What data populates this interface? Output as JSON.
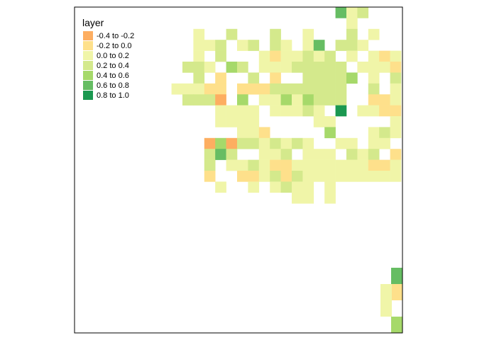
{
  "legend": {
    "title": "layer",
    "classes": [
      {
        "label": "-0.4 to -0.2",
        "color": "#fdae61"
      },
      {
        "label": "-0.2 to 0.0",
        "color": "#fee08b"
      },
      {
        "label": "0.0 to 0.2",
        "color": "#f0f5a8"
      },
      {
        "label": "0.2 to 0.4",
        "color": "#d4e98c"
      },
      {
        "label": "0.4 to 0.6",
        "color": "#a6d96a"
      },
      {
        "label": "0.6 to 0.8",
        "color": "#66bd63"
      },
      {
        "label": "0.8 to 1.0",
        "color": "#1a9850"
      }
    ]
  },
  "grid": {
    "origin_col": 7,
    "origin_row": 1,
    "rows": [
      "...................5c2........................",
      "....................c...........................",
      "......c..2...2..c...2.c..........................",
      "......cc2.c2.2c.c5.22c..........................",
      "......c.2...cdcc2c2.c.cdc.cccccc.................",
      ".....33c.43.ccc22222.cccddc.2cccc................",
      "......2.d..2.d..22221.c.2d..c22cd................",
      "....cccdd.ddd2222222..2.cc2ccc...................",
      ".....222a.4.cc4c4222..ddc22......................",
      "........cccc.ccc2c.6.ccddc.222...................",
      "........cccc.....cc.....cccc2....................",
      "..........ccd.....4...c2cc3cc4c2c................",
      ".......a4a22c2c2c..cc.cc.dc..c2dc................",
      ".......2e2..cc2.ccc.2c2.dccdddddc................",
      ".......2.cc2cddcccccccddcc.dc2cc.................",
      ".......d..ddc2d2cccccccccdcde.ccc................",
      "........c..c.c2cc.c..................5...........",
      "...............cc.c....................cd........",
      "......................................c..........",
      "......................................2.........."
    ]
  }
}
